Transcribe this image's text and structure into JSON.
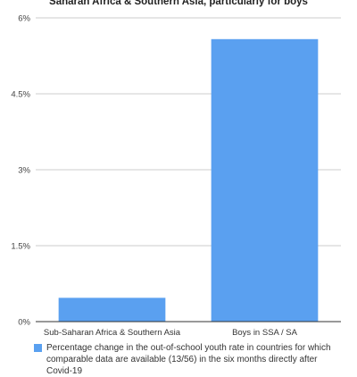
{
  "chart_data": {
    "type": "bar",
    "title": "Saharan Africa & Southern Asia, particularly for boys",
    "categories": [
      "Sub-Saharan Africa & Southern Asia",
      "Boys in SSA / SA"
    ],
    "series": [
      {
        "name": "Percentage change in the out-of-school youth rate in countries for which comparable data are available (13/56) in the six months directly after Covid-19",
        "values": [
          0.47,
          5.58
        ]
      }
    ],
    "xlabel": "",
    "ylabel": "",
    "ylim": [
      0,
      6
    ],
    "yticks": [
      "0%",
      "1.5%",
      "3%",
      "4.5%",
      "6%"
    ],
    "ytick_values": [
      0,
      1.5,
      3,
      4.5,
      6
    ],
    "grid": true,
    "legend_position": "bottom",
    "colors": {
      "bar": "#5aa0f0",
      "grid": "#cccccc",
      "axis": "#333333"
    }
  }
}
